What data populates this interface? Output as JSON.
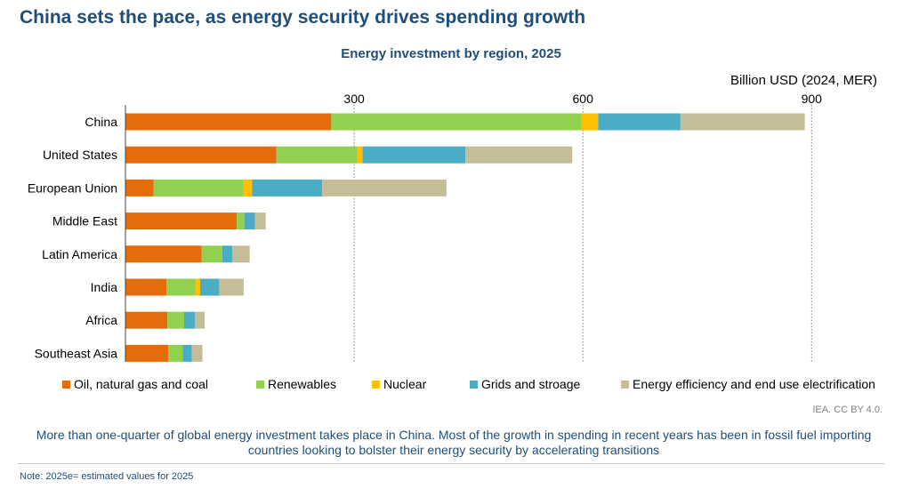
{
  "page": {
    "main_title": "China sets the pace, as energy security drives spending growth",
    "description": "More than one-quarter of global energy investment takes place in China. Most of the growth in spending in recent years has been in fossil fuel importing countries looking to bolster their energy security by accelerating transitions",
    "source": "IEA. CC BY 4.0.",
    "note": "Note: 2025e= estimated values for 2025"
  },
  "chart_data": {
    "type": "bar",
    "orientation": "horizontal",
    "stacked": true,
    "title": "Energy investment by region, 2025",
    "unit_label": "Billion USD (2024, MER)",
    "xlim": [
      0,
      900
    ],
    "ticks": [
      300,
      600,
      900
    ],
    "gridlines": "dotted-vertical",
    "legend_position": "bottom",
    "categories": [
      "China",
      "United States",
      "European Union",
      "Middle East",
      "Latin America",
      "India",
      "Africa",
      "Southeast Asia"
    ],
    "series": [
      {
        "name": "Oil, natural gas and coal",
        "color": "#e46c0a",
        "values": [
          270,
          198,
          37,
          146,
          100,
          54,
          55,
          56
        ]
      },
      {
        "name": "Renewables",
        "color": "#92d050",
        "values": [
          328,
          106,
          118,
          10,
          27,
          38,
          22,
          19
        ]
      },
      {
        "name": "Nuclear",
        "color": "#ffc000",
        "values": [
          22,
          7,
          11,
          0,
          0,
          6,
          0,
          0
        ]
      },
      {
        "name": "Grids and stroage",
        "color": "#4bacc6",
        "values": [
          108,
          135,
          92,
          14,
          13,
          25,
          14,
          12
        ]
      },
      {
        "name": "Energy efficiency and end use electrification",
        "color": "#c4bd97",
        "values": [
          163,
          140,
          163,
          14,
          23,
          32,
          13,
          14
        ]
      }
    ]
  }
}
